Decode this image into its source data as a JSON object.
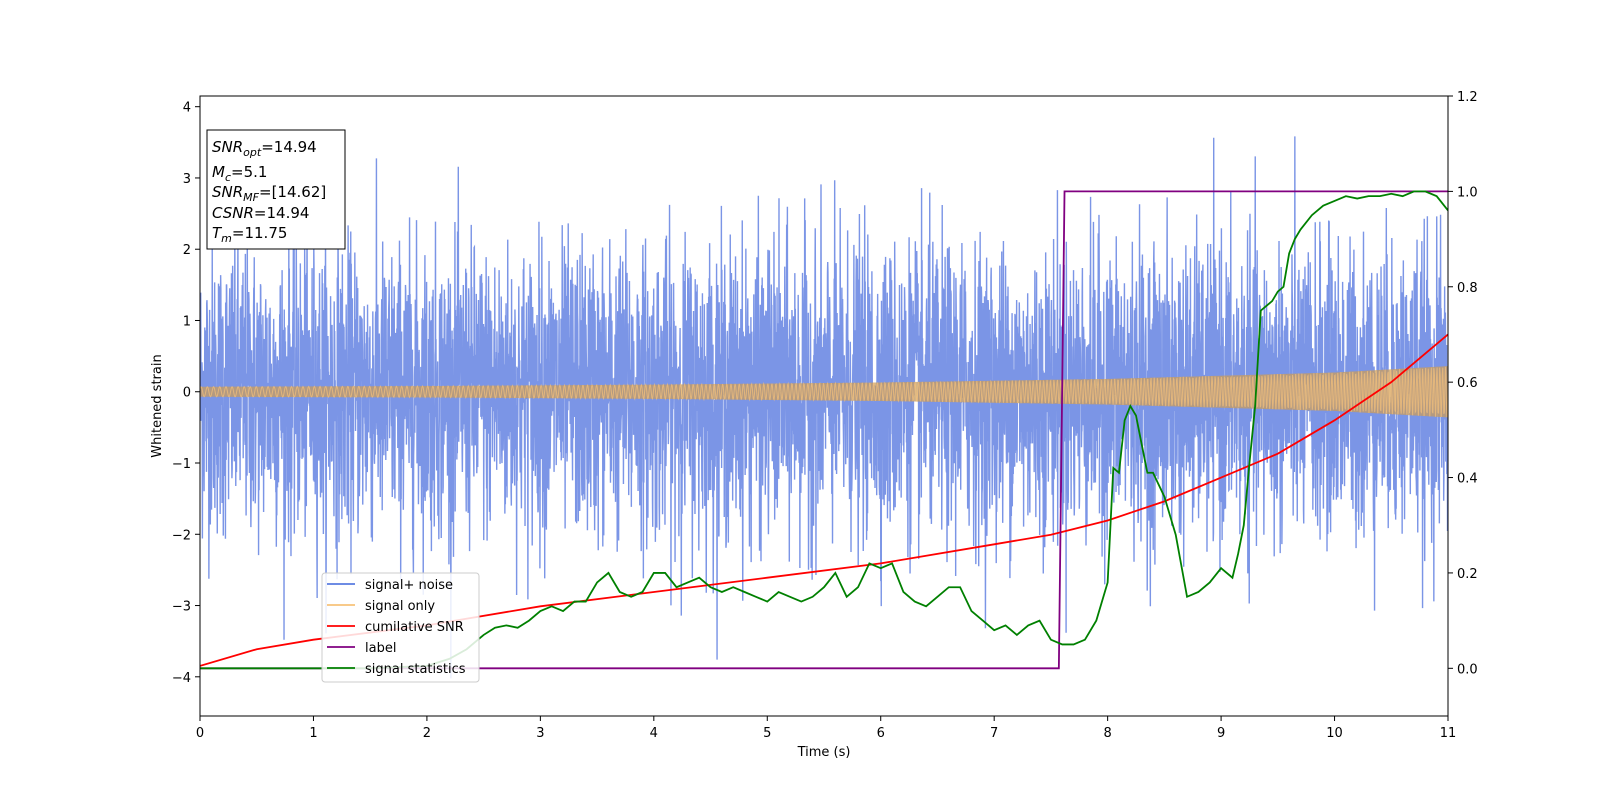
{
  "chart_data": {
    "type": "line",
    "xlabel": "Time (s)",
    "ylabel": "Whitened strain",
    "xlim": [
      0,
      11
    ],
    "ylim": [
      -4.55,
      4.15
    ],
    "y2lim": [
      -0.1,
      1.2
    ],
    "xticks": [
      "0",
      "1",
      "2",
      "3",
      "4",
      "5",
      "6",
      "7",
      "8",
      "9",
      "10",
      "11"
    ],
    "yticks": [
      "−4",
      "−3",
      "−2",
      "−1",
      "0",
      "1",
      "2",
      "3",
      "4"
    ],
    "y2ticks": [
      "0.0",
      "0.2",
      "0.4",
      "0.6",
      "0.8",
      "1.0",
      "1.2"
    ],
    "legend": {
      "placement": "lower-left",
      "entries": [
        {
          "label": "signal+ noise",
          "color": "#5a7be0"
        },
        {
          "label": "signal only",
          "color": "#f7c27a"
        },
        {
          "label": "cumilative SNR",
          "color": "#ff0000"
        },
        {
          "label": "label",
          "color": "#800080"
        },
        {
          "label": "signal statistics",
          "color": "#008000"
        }
      ]
    },
    "annotation": {
      "placement": "upper-left",
      "lines": [
        {
          "base": "SNR",
          "sub": "opt",
          "value": "=14.94"
        },
        {
          "base": "M",
          "sub": "c",
          "value": "=5.1"
        },
        {
          "base": "SNR",
          "sub": "MF",
          "value": "=[14.62]"
        },
        {
          "base": "CSNR",
          "sub": "",
          "value": "=14.94"
        },
        {
          "base": "T",
          "sub": "m",
          "value": "=11.75"
        }
      ]
    },
    "series": [
      {
        "name": "signal+ noise",
        "axis": "left",
        "color": "#5a7be0",
        "description_stats": {
          "t_start": 0,
          "t_end": 11,
          "std": 1.0,
          "min": -4.15,
          "max": 3.75
        }
      },
      {
        "name": "signal only",
        "axis": "left",
        "color": "#f7c27a",
        "envelope": {
          "x": [
            0,
            2,
            4,
            6,
            8,
            10,
            11
          ],
          "amp": [
            0.07,
            0.08,
            0.1,
            0.13,
            0.18,
            0.27,
            0.36
          ]
        }
      },
      {
        "name": "cumilative SNR",
        "axis": "right",
        "color": "#ff0000",
        "x": [
          0,
          0.5,
          1,
          2,
          3,
          4,
          5,
          6,
          7,
          7.5,
          8,
          8.5,
          9,
          9.5,
          10,
          10.5,
          11
        ],
        "y": [
          0.005,
          0.04,
          0.06,
          0.09,
          0.13,
          0.16,
          0.19,
          0.22,
          0.26,
          0.28,
          0.31,
          0.35,
          0.4,
          0.45,
          0.52,
          0.6,
          0.7
        ]
      },
      {
        "name": "label",
        "axis": "right",
        "color": "#800080",
        "x": [
          0,
          7.57,
          7.62,
          11
        ],
        "y": [
          0,
          0,
          1,
          1
        ]
      },
      {
        "name": "signal statistics",
        "axis": "right",
        "color": "#008000",
        "x": [
          0,
          1.5,
          2.0,
          2.2,
          2.35,
          2.5,
          2.6,
          2.7,
          2.8,
          2.9,
          3.0,
          3.1,
          3.2,
          3.3,
          3.4,
          3.5,
          3.6,
          3.7,
          3.8,
          3.9,
          4.0,
          4.1,
          4.2,
          4.3,
          4.4,
          4.5,
          4.6,
          4.7,
          4.8,
          4.9,
          5.0,
          5.1,
          5.2,
          5.3,
          5.4,
          5.5,
          5.6,
          5.7,
          5.8,
          5.9,
          6.0,
          6.1,
          6.2,
          6.3,
          6.4,
          6.5,
          6.6,
          6.7,
          6.8,
          6.9,
          7.0,
          7.1,
          7.2,
          7.3,
          7.4,
          7.5,
          7.6,
          7.7,
          7.8,
          7.9,
          8.0,
          8.05,
          8.1,
          8.15,
          8.2,
          8.25,
          8.3,
          8.35,
          8.4,
          8.5,
          8.6,
          8.7,
          8.8,
          8.9,
          9.0,
          9.1,
          9.15,
          9.2,
          9.25,
          9.3,
          9.35,
          9.4,
          9.45,
          9.5,
          9.55,
          9.6,
          9.65,
          9.7,
          9.8,
          9.9,
          10.0,
          10.1,
          10.2,
          10.3,
          10.4,
          10.5,
          10.6,
          10.7,
          10.8,
          10.9,
          11.0
        ],
        "y": [
          0.0,
          0.0,
          0.005,
          0.02,
          0.04,
          0.07,
          0.085,
          0.09,
          0.085,
          0.1,
          0.12,
          0.13,
          0.12,
          0.14,
          0.14,
          0.18,
          0.2,
          0.16,
          0.15,
          0.16,
          0.2,
          0.2,
          0.17,
          0.18,
          0.19,
          0.17,
          0.16,
          0.17,
          0.16,
          0.15,
          0.14,
          0.16,
          0.15,
          0.14,
          0.15,
          0.17,
          0.2,
          0.15,
          0.17,
          0.22,
          0.21,
          0.22,
          0.16,
          0.14,
          0.13,
          0.15,
          0.17,
          0.17,
          0.12,
          0.1,
          0.08,
          0.09,
          0.07,
          0.09,
          0.1,
          0.06,
          0.05,
          0.05,
          0.06,
          0.1,
          0.18,
          0.42,
          0.41,
          0.52,
          0.55,
          0.53,
          0.47,
          0.41,
          0.41,
          0.36,
          0.28,
          0.15,
          0.16,
          0.18,
          0.21,
          0.19,
          0.24,
          0.3,
          0.43,
          0.55,
          0.75,
          0.76,
          0.77,
          0.79,
          0.8,
          0.87,
          0.9,
          0.92,
          0.95,
          0.97,
          0.98,
          0.99,
          0.985,
          0.99,
          0.99,
          0.995,
          0.99,
          1.0,
          1.0,
          0.99,
          0.96
        ]
      }
    ]
  }
}
